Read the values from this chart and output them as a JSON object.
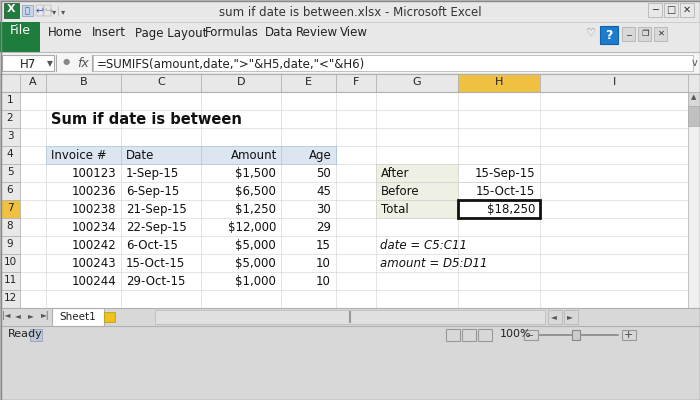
{
  "title_bar": "sum if date is between.xlsx - Microsoft Excel",
  "cell_ref": "H7",
  "formula": "=SUMIFS(amount,date,\">\"&H5,date,\"<\"&H6)",
  "sheet_title": "Sum if date is between",
  "col_headers": [
    "Invoice #",
    "Date",
    "Amount",
    "Age"
  ],
  "table_data": [
    [
      "100123",
      "1-Sep-15",
      "$1,500",
      "50"
    ],
    [
      "100236",
      "6-Sep-15",
      "$6,500",
      "45"
    ],
    [
      "100238",
      "21-Sep-15",
      "$1,250",
      "30"
    ],
    [
      "100234",
      "22-Sep-15",
      "$12,000",
      "29"
    ],
    [
      "100242",
      "6-Oct-15",
      "$5,000",
      "15"
    ],
    [
      "100243",
      "15-Oct-15",
      "$5,000",
      "10"
    ],
    [
      "100244",
      "29-Oct-15",
      "$1,000",
      "10"
    ]
  ],
  "side_labels": [
    "After",
    "Before",
    "Total"
  ],
  "side_values": [
    "15-Sep-15",
    "15-Oct-15",
    "$18,250"
  ],
  "note1": "date = C5:C11",
  "note2": "amount = D5:D11",
  "col_letters": [
    "A",
    "B",
    "C",
    "D",
    "E",
    "F",
    "G",
    "H",
    "I"
  ],
  "row_numbers": [
    "1",
    "2",
    "3",
    "4",
    "5",
    "6",
    "7",
    "8",
    "9",
    "10",
    "11",
    "12"
  ],
  "titlebar_bg": "#e8e8e8",
  "titlebar_fg": "#333333",
  "ribbon_bg": "#e8e8e8",
  "ribbon_green": "#1e7c3c",
  "formulabar_bg": "#f5f5f5",
  "col_header_bg": "#dce6f1",
  "col_header_border": "#aec3d9",
  "selected_col_bg": "#f0c040",
  "side_label_bg": "#edf0e2",
  "side_value_bg": "#ffffff",
  "row_header_selected_bg": "#f0c040",
  "row_header_bg": "#e8e8e8",
  "gridline_color": "#d0d0d0",
  "cell_bg": "#ffffff",
  "scrollbar_bg": "#f0f0f0",
  "statusbar_bg": "#d8d8d8",
  "tab_bg": "#f0f0f0",
  "tab_active_bg": "#ffffff",
  "overall_bg": "#c8c8c8"
}
